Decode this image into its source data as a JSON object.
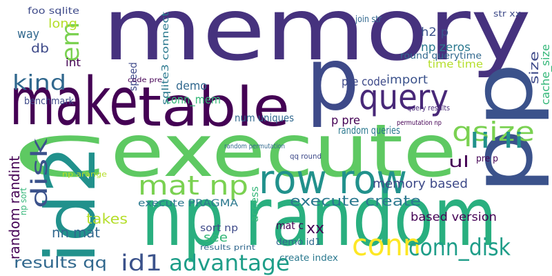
{
  "words": [
    "memory",
    "make",
    "table",
    "p",
    "execute",
    "c",
    "np random",
    "id2",
    "pp",
    "query",
    "qsize",
    "row row",
    "mat np",
    "conn",
    "conn_disk",
    "advantage",
    "id1",
    "results qq",
    "memory based",
    "execute create",
    "based version",
    "li li",
    "ul",
    "kind",
    "em",
    "disk",
    "random randint",
    "nn mat",
    "takes",
    "execute PRAGMA",
    "sort np",
    "see",
    "results print",
    "create index",
    "demo id1",
    "mat c",
    "xx",
    "access",
    "np arange",
    "conn_mem",
    "demo",
    "speed",
    "sqlite3 connect",
    "num uniques",
    "import",
    "pre code",
    "random queries",
    "query results",
    "random permutation",
    "p pre",
    "permutation np",
    "qq round",
    "pre p",
    "h2 p",
    "np zeros",
    "round querytime",
    "time time",
    "size",
    "cache_size",
    "foo sqlite",
    "long",
    "way",
    "db",
    "int",
    "benchmark",
    "code pre",
    "join str",
    "np sort",
    "str xx"
  ]
}
